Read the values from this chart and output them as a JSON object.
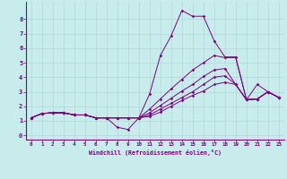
{
  "xlabel": "Windchill (Refroidissement éolien,°C)",
  "background_color": "#c8ecec",
  "line_color": "#800080",
  "grid_color": "#b0d8d8",
  "xlim": [
    -0.5,
    23.5
  ],
  "ylim": [
    -0.3,
    9.2
  ],
  "xticks": [
    0,
    1,
    2,
    3,
    4,
    5,
    6,
    7,
    8,
    9,
    10,
    11,
    12,
    13,
    14,
    15,
    16,
    17,
    18,
    19,
    20,
    21,
    22,
    23
  ],
  "yticks": [
    0,
    1,
    2,
    3,
    4,
    5,
    6,
    7,
    8
  ],
  "lines": [
    [
      1.2,
      1.5,
      1.55,
      1.55,
      1.4,
      1.4,
      1.2,
      1.2,
      0.55,
      0.4,
      1.2,
      2.85,
      5.5,
      6.85,
      8.6,
      8.2,
      8.2,
      6.5,
      5.4,
      5.4,
      2.45,
      3.5,
      3.0,
      2.6
    ],
    [
      1.2,
      1.5,
      1.55,
      1.55,
      1.4,
      1.4,
      1.2,
      1.2,
      1.2,
      1.2,
      1.2,
      1.8,
      2.5,
      3.2,
      3.85,
      4.5,
      5.0,
      5.5,
      5.35,
      5.35,
      2.45,
      2.5,
      3.0,
      2.6
    ],
    [
      1.2,
      1.5,
      1.55,
      1.55,
      1.4,
      1.4,
      1.2,
      1.2,
      1.2,
      1.2,
      1.2,
      1.55,
      2.05,
      2.55,
      3.05,
      3.5,
      4.05,
      4.5,
      4.6,
      3.5,
      2.45,
      2.5,
      3.0,
      2.6
    ],
    [
      1.2,
      1.5,
      1.55,
      1.55,
      1.4,
      1.4,
      1.2,
      1.2,
      1.2,
      1.2,
      1.2,
      1.4,
      1.8,
      2.2,
      2.6,
      3.0,
      3.5,
      4.0,
      4.1,
      3.5,
      2.45,
      2.5,
      3.0,
      2.6
    ],
    [
      1.2,
      1.5,
      1.55,
      1.55,
      1.4,
      1.4,
      1.2,
      1.2,
      1.2,
      1.2,
      1.2,
      1.3,
      1.6,
      2.0,
      2.4,
      2.75,
      3.05,
      3.5,
      3.65,
      3.5,
      2.45,
      2.5,
      3.0,
      2.6
    ]
  ]
}
